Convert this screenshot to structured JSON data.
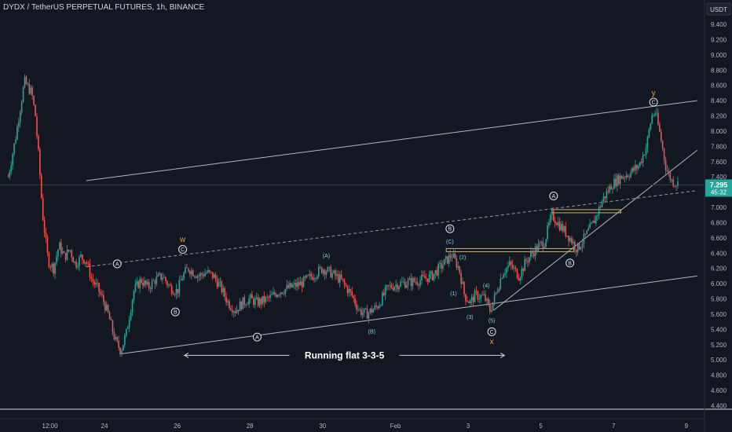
{
  "header": {
    "title": "DYDX / TetherUS PERPETUAL FUTURES, 1h, BINANCE",
    "currency": "USDT"
  },
  "price_tag": {
    "price": "7.295",
    "countdown": "45:32"
  },
  "chart_data": {
    "type": "candlestick",
    "title": "DYDX / TetherUS PERPETUAL FUTURES, 1h, BINANCE",
    "xlabel": "",
    "ylabel": "",
    "ylim": [
      4.4,
      9.55
    ],
    "y_ticks": [
      "9.400",
      "9.200",
      "9.000",
      "8.800",
      "8.600",
      "8.400",
      "8.200",
      "8.000",
      "7.800",
      "7.600",
      "7.400",
      "7.200",
      "7.000",
      "6.800",
      "6.600",
      "6.400",
      "6.200",
      "6.000",
      "5.800",
      "5.600",
      "5.400",
      "5.200",
      "5.000",
      "4.800",
      "4.600",
      "4.400"
    ],
    "x_ticks": [
      {
        "label": "12:00",
        "day": 22.5
      },
      {
        "label": "24",
        "day": 24
      },
      {
        "label": "26",
        "day": 26
      },
      {
        "label": "28",
        "day": 28
      },
      {
        "label": "30",
        "day": 30
      },
      {
        "label": "Feb",
        "day": 32
      },
      {
        "label": "3",
        "day": 34
      },
      {
        "label": "5",
        "day": 36
      },
      {
        "label": "7",
        "day": 38
      },
      {
        "label": "9",
        "day": 40
      }
    ],
    "price_path": [
      [
        21.35,
        7.4
      ],
      [
        21.55,
        7.9
      ],
      [
        21.8,
        8.65
      ],
      [
        22.0,
        8.5
      ],
      [
        22.1,
        8.2
      ],
      [
        22.2,
        7.6
      ],
      [
        22.3,
        6.9
      ],
      [
        22.45,
        6.3
      ],
      [
        22.6,
        6.2
      ],
      [
        22.75,
        6.5
      ],
      [
        22.9,
        6.35
      ],
      [
        23.05,
        6.45
      ],
      [
        23.2,
        6.25
      ],
      [
        23.35,
        6.35
      ],
      [
        23.5,
        6.3
      ],
      [
        23.65,
        6.05
      ],
      [
        23.8,
        5.95
      ],
      [
        23.95,
        5.8
      ],
      [
        24.1,
        5.6
      ],
      [
        24.3,
        5.25
      ],
      [
        24.45,
        5.12
      ],
      [
        24.6,
        5.35
      ],
      [
        24.8,
        5.9
      ],
      [
        25.0,
        6.05
      ],
      [
        25.2,
        5.95
      ],
      [
        25.4,
        6.05
      ],
      [
        25.6,
        6.1
      ],
      [
        25.8,
        5.95
      ],
      [
        26.0,
        5.9
      ],
      [
        26.15,
        6.1
      ],
      [
        26.3,
        6.2
      ],
      [
        26.45,
        6.15
      ],
      [
        26.6,
        6.1
      ],
      [
        26.8,
        6.15
      ],
      [
        27.0,
        6.1
      ],
      [
        27.2,
        5.95
      ],
      [
        27.4,
        5.75
      ],
      [
        27.6,
        5.65
      ],
      [
        27.8,
        5.75
      ],
      [
        28.0,
        5.8
      ],
      [
        28.2,
        5.75
      ],
      [
        28.5,
        5.8
      ],
      [
        28.8,
        5.9
      ],
      [
        29.1,
        5.95
      ],
      [
        29.4,
        6.0
      ],
      [
        29.7,
        6.1
      ],
      [
        30.0,
        6.2
      ],
      [
        30.2,
        6.15
      ],
      [
        30.5,
        6.05
      ],
      [
        30.8,
        5.85
      ],
      [
        31.0,
        5.65
      ],
      [
        31.2,
        5.6
      ],
      [
        31.5,
        5.7
      ],
      [
        31.8,
        5.95
      ],
      [
        32.1,
        6.0
      ],
      [
        32.4,
        6.02
      ],
      [
        32.7,
        6.05
      ],
      [
        33.0,
        6.1
      ],
      [
        33.3,
        6.25
      ],
      [
        33.55,
        6.38
      ],
      [
        33.75,
        6.2
      ],
      [
        33.9,
        5.85
      ],
      [
        34.05,
        5.75
      ],
      [
        34.2,
        5.85
      ],
      [
        34.45,
        5.82
      ],
      [
        34.6,
        5.65
      ],
      [
        34.75,
        5.85
      ],
      [
        34.95,
        6.15
      ],
      [
        35.15,
        6.25
      ],
      [
        35.4,
        6.1
      ],
      [
        35.6,
        6.3
      ],
      [
        35.85,
        6.45
      ],
      [
        36.1,
        6.55
      ],
      [
        36.3,
        6.9
      ],
      [
        36.55,
        6.75
      ],
      [
        36.8,
        6.6
      ],
      [
        37.0,
        6.45
      ],
      [
        37.2,
        6.6
      ],
      [
        37.45,
        6.8
      ],
      [
        37.7,
        7.1
      ],
      [
        37.95,
        7.3
      ],
      [
        38.2,
        7.4
      ],
      [
        38.45,
        7.45
      ],
      [
        38.7,
        7.55
      ],
      [
        38.9,
        7.8
      ],
      [
        39.05,
        8.2
      ],
      [
        39.15,
        8.25
      ],
      [
        39.3,
        7.9
      ],
      [
        39.45,
        7.5
      ],
      [
        39.6,
        7.35
      ],
      [
        39.8,
        7.3
      ]
    ],
    "trendlines": [
      {
        "kind": "solid",
        "from": [
          24.45,
          5.08
        ],
        "to": [
          40.3,
          6.1
        ]
      },
      {
        "kind": "solid",
        "from": [
          23.5,
          7.35
        ],
        "to": [
          40.3,
          8.4
        ]
      },
      {
        "kind": "dashed",
        "from": [
          23.5,
          6.22
        ],
        "to": [
          40.3,
          7.22
        ]
      },
      {
        "kind": "solid",
        "from": [
          34.7,
          5.65
        ],
        "to": [
          40.3,
          7.75
        ]
      }
    ],
    "annotations": [
      {
        "text": "w",
        "day": 26.15,
        "price": 6.58,
        "style": "orange"
      },
      {
        "text": "C",
        "day": 26.15,
        "price": 6.45,
        "style": "circle"
      },
      {
        "text": "A",
        "day": 24.35,
        "price": 6.26,
        "style": "circle"
      },
      {
        "text": "B",
        "day": 25.95,
        "price": 5.63,
        "style": "circle"
      },
      {
        "text": "A",
        "day": 28.2,
        "price": 5.3,
        "style": "circle"
      },
      {
        "text": "(A)",
        "day": 30.1,
        "price": 6.37,
        "style": "cyan"
      },
      {
        "text": "(B)",
        "day": 31.35,
        "price": 5.38,
        "style": "cyan"
      },
      {
        "text": "B",
        "day": 33.5,
        "price": 6.72,
        "style": "circle"
      },
      {
        "text": "(C)",
        "day": 33.5,
        "price": 6.56,
        "style": "cyan"
      },
      {
        "text": "(2)",
        "day": 33.85,
        "price": 6.35,
        "style": "cyan"
      },
      {
        "text": "(1)",
        "day": 33.6,
        "price": 5.88,
        "style": "cyan"
      },
      {
        "text": "(3)",
        "day": 34.05,
        "price": 5.57,
        "style": "cyan"
      },
      {
        "text": "(4)",
        "day": 34.5,
        "price": 5.98,
        "style": "cyan"
      },
      {
        "text": "(5)",
        "day": 34.65,
        "price": 5.52,
        "style": "cyan"
      },
      {
        "text": "C",
        "day": 34.65,
        "price": 5.37,
        "style": "circle"
      },
      {
        "text": "x",
        "day": 34.65,
        "price": 5.24,
        "style": "orange"
      },
      {
        "text": "A",
        "day": 36.35,
        "price": 7.15,
        "style": "circle"
      },
      {
        "text": "B",
        "day": 36.8,
        "price": 6.27,
        "style": "circle"
      },
      {
        "text": "y",
        "day": 39.1,
        "price": 8.5,
        "style": "orange"
      },
      {
        "text": "C",
        "day": 39.1,
        "price": 8.38,
        "style": "circle"
      }
    ],
    "zones": [
      {
        "day_from": 33.4,
        "day_to": 36.9,
        "price": 6.44
      },
      {
        "day_from": 36.3,
        "day_to": 38.2,
        "price": 6.95
      }
    ],
    "caption": {
      "text": "Running flat 3-3-5",
      "day_from": 26.2,
      "day_to": 35.0,
      "price": 5.06
    },
    "last_price": 7.295,
    "grid": false
  }
}
